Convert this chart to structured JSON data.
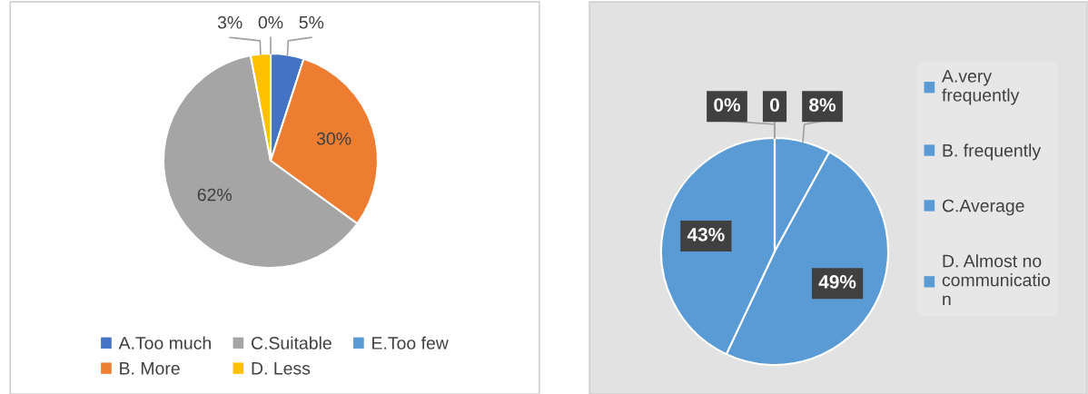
{
  "chart_data": [
    {
      "type": "pie",
      "categories": [
        "A.Too much",
        "B. More",
        "C.Suitable",
        "D. Less",
        "E.Too few"
      ],
      "values": [
        5,
        30,
        62,
        3,
        0
      ],
      "colors": [
        "#4472c4",
        "#ed7d31",
        "#a5a5a5",
        "#ffc000",
        "#5b9bd5"
      ],
      "value_labels": [
        "5%",
        "30%",
        "62%",
        "3%",
        "0%"
      ],
      "legend": "bottom"
    },
    {
      "type": "pie",
      "categories": [
        "A.very\nfrequently",
        "B. frequently",
        "C.Average",
        "D. Almost no\ncommunicatio\nn",
        null
      ],
      "values": [
        8,
        49,
        43,
        0,
        0
      ],
      "colors": [
        "#5b9bd5",
        "#5b9bd5",
        "#5b9bd5",
        "#5b9bd5",
        "#5b9bd5"
      ],
      "value_labels": [
        "8%",
        "49%",
        "43%",
        "0%",
        "0"
      ],
      "legend": "right"
    }
  ]
}
